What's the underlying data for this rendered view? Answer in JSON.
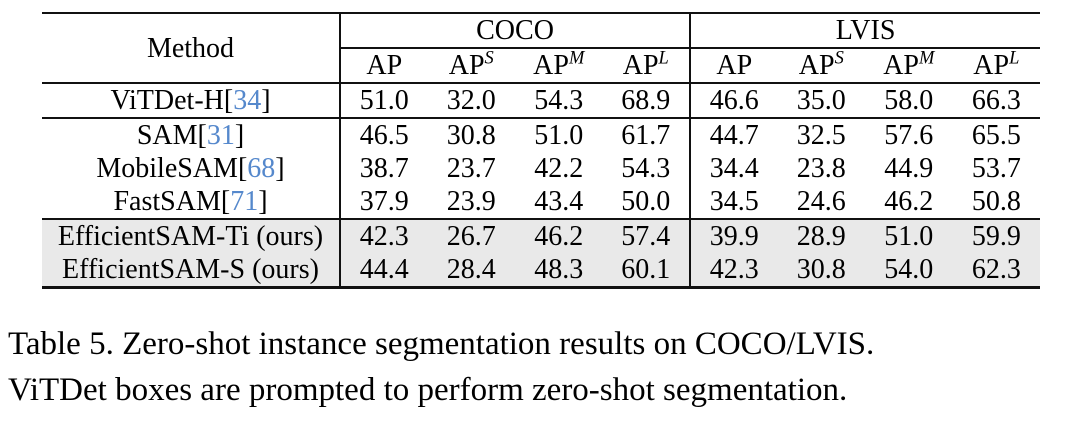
{
  "colors": {
    "citation_blue": "#5588cc",
    "highlight_row_bg": "#e9e9e9",
    "rule_black": "#111111"
  },
  "table": {
    "method_header": "Method",
    "groups": [
      {
        "label": "COCO"
      },
      {
        "label": "LVIS"
      }
    ],
    "columns": [
      {
        "base": "AP",
        "sup": ""
      },
      {
        "base": "AP",
        "sup": "S"
      },
      {
        "base": "AP",
        "sup": "M"
      },
      {
        "base": "AP",
        "sup": "L"
      }
    ],
    "rows": [
      {
        "method_pre": "ViTDet-H[",
        "cite": "34",
        "method_post": "]",
        "coco": [
          "51.0",
          "32.0",
          "54.3",
          "68.9"
        ],
        "lvis": [
          "46.6",
          "35.0",
          "58.0",
          "66.3"
        ],
        "highlight": false
      },
      {
        "method_pre": "SAM[",
        "cite": "31",
        "method_post": "]",
        "coco": [
          "46.5",
          "30.8",
          "51.0",
          "61.7"
        ],
        "lvis": [
          "44.7",
          "32.5",
          "57.6",
          "65.5"
        ],
        "highlight": false
      },
      {
        "method_pre": "MobileSAM[",
        "cite": "68",
        "method_post": "]",
        "coco": [
          "38.7",
          "23.7",
          "42.2",
          "54.3"
        ],
        "lvis": [
          "34.4",
          "23.8",
          "44.9",
          "53.7"
        ],
        "highlight": false
      },
      {
        "method_pre": "FastSAM[",
        "cite": "71",
        "method_post": "]",
        "coco": [
          "37.9",
          "23.9",
          "43.4",
          "50.0"
        ],
        "lvis": [
          "34.5",
          "24.6",
          "46.2",
          "50.8"
        ],
        "highlight": false
      },
      {
        "method_pre": "EfficientSAM-Ti (ours)",
        "cite": "",
        "method_post": "",
        "coco": [
          "42.3",
          "26.7",
          "46.2",
          "57.4"
        ],
        "lvis": [
          "39.9",
          "28.9",
          "51.0",
          "59.9"
        ],
        "highlight": true
      },
      {
        "method_pre": "EfficientSAM-S (ours)",
        "cite": "",
        "method_post": "",
        "coco": [
          "44.4",
          "28.4",
          "48.3",
          "60.1"
        ],
        "lvis": [
          "42.3",
          "30.8",
          "54.0",
          "62.3"
        ],
        "highlight": true
      }
    ]
  },
  "caption": {
    "line1": "Table 5. Zero-shot instance segmentation results on COCO/LVIS.",
    "line2": "ViTDet boxes are prompted to perform zero-shot segmentation."
  }
}
